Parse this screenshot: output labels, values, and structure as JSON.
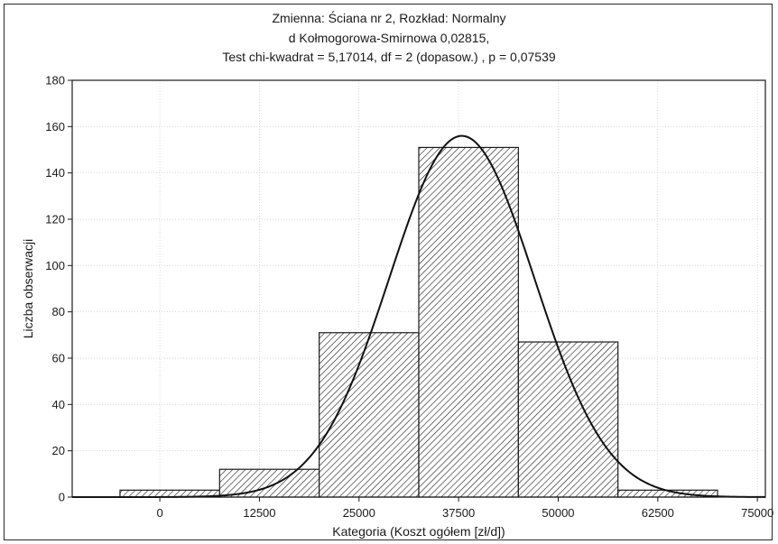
{
  "chart_data": {
    "type": "bar",
    "title_lines": [
      "Zmienna:  Ściana nr 2, Rozkład: Normalny",
      "d Kołmogorowa-Smirnowa 0,02815,",
      "Test chi-kwadrat = 5,17014, df = 2 (dopasow.) , p = 0,07539"
    ],
    "xlabel": "Kategoria (Koszt ogółem [zł/d])",
    "ylabel": "Liczba obserwacji",
    "x_ticks": [
      0,
      12500,
      25000,
      37500,
      50000,
      62500,
      75000
    ],
    "y_ticks": [
      0,
      20,
      40,
      60,
      80,
      100,
      120,
      140,
      160,
      180
    ],
    "xlim": [
      -11000,
      76000
    ],
    "ylim": [
      0,
      180
    ],
    "bin_width": 12500,
    "bins": [
      {
        "x0": -5000,
        "x1": 7500,
        "value": 3
      },
      {
        "x0": 7500,
        "x1": 20000,
        "value": 12
      },
      {
        "x0": 20000,
        "x1": 32500,
        "value": 71
      },
      {
        "x0": 32500,
        "x1": 45000,
        "value": 151
      },
      {
        "x0": 45000,
        "x1": 57500,
        "value": 67
      },
      {
        "x0": 57500,
        "x1": 70000,
        "value": 3
      }
    ],
    "fit_curve": {
      "distribution": "normal",
      "mean": 37900,
      "sd": 9100,
      "peak": 156
    },
    "grid": true,
    "colors": {
      "bars": "#1a1a1a",
      "curve": "#111111",
      "grid": "#c8c8c8"
    }
  }
}
